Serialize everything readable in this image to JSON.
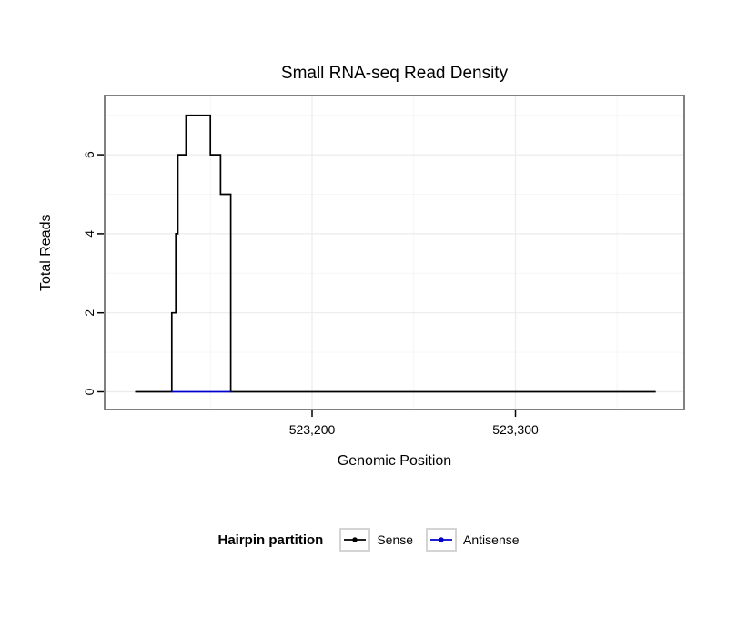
{
  "chart": {
    "title": "Small RNA-seq Read Density",
    "xlabel": "Genomic Position",
    "ylabel": "Total Reads",
    "legend": {
      "title": "Hairpin partition",
      "items": [
        {
          "label": "Sense",
          "color": "#000000"
        },
        {
          "label": "Antisense",
          "color": "#0000CC"
        }
      ]
    }
  },
  "chart_data": {
    "type": "line",
    "title": "Small RNA-seq Read Density",
    "xlabel": "Genomic Position",
    "ylabel": "Total Reads",
    "xlim": [
      523098,
      523383
    ],
    "ylim": [
      -0.45,
      7.5
    ],
    "grid": true,
    "legend_position": "bottom",
    "legend_title": "Hairpin partition",
    "legend_entries": [
      "Sense",
      "Antisense"
    ],
    "x_ticks": [
      {
        "pos": 523200,
        "label": "523,200"
      },
      {
        "pos": 523300,
        "label": "523,300"
      }
    ],
    "x_minor": [
      523150,
      523250,
      523350
    ],
    "y_ticks": [
      {
        "val": 0,
        "label": "0"
      },
      {
        "val": 2,
        "label": "2"
      },
      {
        "val": 4,
        "label": "4"
      },
      {
        "val": 6,
        "label": "6"
      }
    ],
    "y_minor": [
      1,
      3,
      5,
      7
    ],
    "series": [
      {
        "name": "Sense",
        "color": "#000000",
        "step_points": [
          [
            523113,
            0
          ],
          [
            523131,
            0
          ],
          [
            523131,
            2
          ],
          [
            523133,
            2
          ],
          [
            523133,
            4
          ],
          [
            523134,
            4
          ],
          [
            523134,
            6
          ],
          [
            523138,
            6
          ],
          [
            523138,
            7
          ],
          [
            523150,
            7
          ],
          [
            523150,
            6
          ],
          [
            523155,
            6
          ],
          [
            523155,
            5
          ],
          [
            523160,
            5
          ],
          [
            523160,
            0
          ],
          [
            523369,
            0
          ]
        ]
      },
      {
        "name": "Antisense",
        "color": "#0000CC",
        "step_points": [
          [
            523131,
            0
          ],
          [
            523160,
            0
          ]
        ]
      }
    ],
    "colors": {
      "border": "#808080",
      "grid_major": "#EBEBEB",
      "grid_minor": "#F6F6F6",
      "tick": "#000000"
    }
  }
}
